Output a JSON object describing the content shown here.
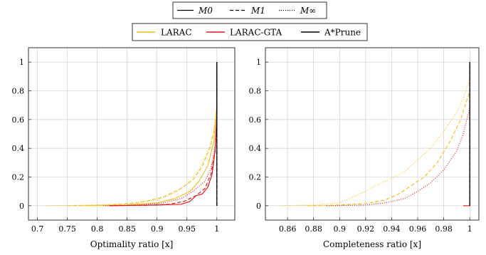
{
  "legend_styles": {
    "items": [
      {
        "label": "M0",
        "dash": "solid"
      },
      {
        "label": "M1",
        "dash": "dashed"
      },
      {
        "label": "M∞",
        "dash": "dotted"
      }
    ]
  },
  "legend_algorithms": {
    "items": [
      {
        "label": "LARAC",
        "color": "#f4c025"
      },
      {
        "label": "LARAC-GTA",
        "color": "#e41a1c"
      },
      {
        "label": "A*Prune",
        "color": "#000000"
      }
    ]
  },
  "chart_data": [
    {
      "type": "line",
      "xlabel": "Optimality ratio [x]",
      "ylabel": "",
      "xlim": [
        0.685,
        1.03
      ],
      "ylim": [
        -0.1,
        1.1
      ],
      "xticks": [
        0.7,
        0.75,
        0.8,
        0.85,
        0.9,
        0.95,
        1
      ],
      "xtick_labels": [
        "0.7",
        "0.75",
        "0.8",
        "0.85",
        "0.9",
        "0.95",
        "1"
      ],
      "yticks": [
        0,
        0.2,
        0.4,
        0.6,
        0.8,
        1
      ],
      "ytick_labels": [
        "0",
        "0.2",
        "0.4",
        "0.6",
        "0.8",
        "1"
      ],
      "grid": true,
      "series": [
        {
          "algorithm": "LARAC",
          "style": "M∞",
          "x": [
            0.715,
            0.8,
            0.85,
            0.9,
            0.93,
            0.95,
            0.97,
            0.985,
            0.995,
            1.0,
            1.0
          ],
          "y": [
            0,
            0.005,
            0.015,
            0.04,
            0.09,
            0.15,
            0.25,
            0.38,
            0.52,
            0.7,
            1.0
          ]
        },
        {
          "algorithm": "LARAC",
          "style": "M1",
          "x": [
            0.75,
            0.82,
            0.87,
            0.91,
            0.94,
            0.96,
            0.975,
            0.99,
            1.0,
            1.0
          ],
          "y": [
            0,
            0.005,
            0.02,
            0.06,
            0.12,
            0.18,
            0.27,
            0.42,
            0.62,
            1.0
          ]
        },
        {
          "algorithm": "LARAC",
          "style": "M0",
          "x": [
            0.78,
            0.85,
            0.9,
            0.93,
            0.955,
            0.97,
            0.985,
            0.995,
            1.0,
            1.0
          ],
          "y": [
            0,
            0.005,
            0.02,
            0.05,
            0.1,
            0.17,
            0.28,
            0.45,
            0.7,
            1.0
          ]
        },
        {
          "algorithm": "LARAC-GTA",
          "style": "M∞",
          "x": [
            0.81,
            0.87,
            0.91,
            0.94,
            0.96,
            0.98,
            0.99,
            0.997,
            1.0,
            1.0
          ],
          "y": [
            0,
            0.005,
            0.02,
            0.05,
            0.1,
            0.17,
            0.26,
            0.42,
            0.62,
            1.0
          ]
        },
        {
          "algorithm": "LARAC-GTA",
          "style": "M1",
          "x": [
            0.82,
            0.88,
            0.92,
            0.945,
            0.965,
            0.98,
            0.99,
            0.997,
            1.0,
            1.0
          ],
          "y": [
            0,
            0.003,
            0.01,
            0.03,
            0.07,
            0.12,
            0.22,
            0.38,
            0.6,
            1.0
          ]
        },
        {
          "algorithm": "LARAC-GTA",
          "style": "M0",
          "x": [
            0.82,
            0.9,
            0.94,
            0.955,
            0.965,
            0.975,
            0.985,
            0.992,
            0.997,
            1.0,
            1.0
          ],
          "y": [
            0,
            0.005,
            0.01,
            0.03,
            0.07,
            0.08,
            0.13,
            0.22,
            0.38,
            0.62,
            1.0
          ]
        },
        {
          "algorithm": "A*Prune",
          "style": "M0",
          "x": [
            1.0,
            1.0
          ],
          "y": [
            0,
            1.0
          ]
        },
        {
          "algorithm": "A*Prune",
          "style": "M1",
          "x": [
            1.0,
            1.0
          ],
          "y": [
            0,
            1.0
          ]
        },
        {
          "algorithm": "A*Prune",
          "style": "M∞",
          "x": [
            1.0,
            1.0
          ],
          "y": [
            0,
            1.0
          ]
        }
      ]
    },
    {
      "type": "line",
      "xlabel": "Completeness ratio [x]",
      "ylabel": "",
      "xlim": [
        0.843,
        1.007
      ],
      "ylim": [
        -0.1,
        1.1
      ],
      "xticks": [
        0.86,
        0.88,
        0.9,
        0.92,
        0.94,
        0.96,
        0.98,
        1
      ],
      "xtick_labels": [
        "0.86",
        "0.88",
        "0.9",
        "0.92",
        "0.94",
        "0.96",
        "0.98",
        "1"
      ],
      "yticks": [
        0,
        0.2,
        0.4,
        0.6,
        0.8,
        1
      ],
      "ytick_labels": [
        "0",
        "0.2",
        "0.4",
        "0.6",
        "0.8",
        "1"
      ],
      "grid": true,
      "series": [
        {
          "algorithm": "LARAC",
          "style": "M∞",
          "x": [
            0.855,
            0.88,
            0.9,
            0.91,
            0.92,
            0.93,
            0.94,
            0.95,
            0.96,
            0.97,
            0.98,
            0.99,
            0.995,
            1.0,
            1.0
          ],
          "y": [
            0,
            0.005,
            0.02,
            0.06,
            0.1,
            0.15,
            0.19,
            0.24,
            0.32,
            0.4,
            0.52,
            0.65,
            0.75,
            0.88,
            1.0
          ]
        },
        {
          "algorithm": "LARAC",
          "style": "M1",
          "x": [
            0.875,
            0.9,
            0.92,
            0.935,
            0.945,
            0.955,
            0.965,
            0.975,
            0.985,
            0.993,
            1.0,
            1.0
          ],
          "y": [
            0,
            0.005,
            0.015,
            0.04,
            0.08,
            0.14,
            0.2,
            0.3,
            0.45,
            0.6,
            0.8,
            1.0
          ]
        },
        {
          "algorithm": "LARAC-GTA",
          "style": "M∞",
          "x": [
            0.89,
            0.92,
            0.935,
            0.95,
            0.96,
            0.97,
            0.98,
            0.99,
            0.995,
            1.0,
            1.0
          ],
          "y": [
            0,
            0.005,
            0.02,
            0.05,
            0.1,
            0.16,
            0.25,
            0.38,
            0.5,
            0.68,
            1.0
          ]
        },
        {
          "algorithm": "LARAC-GTA",
          "style": "M0",
          "x": [
            0.995,
            1.0,
            1.0
          ],
          "y": [
            0,
            0.0,
            1.0
          ]
        },
        {
          "algorithm": "A*Prune",
          "style": "M0",
          "x": [
            1.0,
            1.0
          ],
          "y": [
            0,
            1.0
          ]
        },
        {
          "algorithm": "A*Prune",
          "style": "M1",
          "x": [
            1.0,
            1.0
          ],
          "y": [
            0,
            1.0
          ]
        }
      ]
    }
  ]
}
